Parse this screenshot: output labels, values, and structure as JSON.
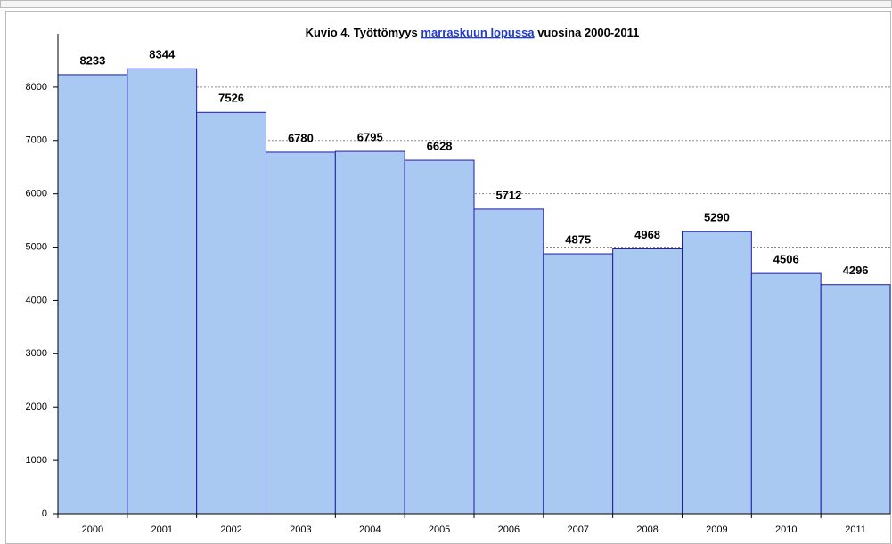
{
  "chart_data": {
    "type": "bar",
    "title": [
      "Kuvio 4. Työttömyys",
      "marraskuun lopussa",
      "vuosina  2000-2011"
    ],
    "categories": [
      "2000",
      "2001",
      "2002",
      "2003",
      "2004",
      "2005",
      "2006",
      "2007",
      "2008",
      "2009",
      "2010",
      "2011"
    ],
    "values": [
      8233,
      8344,
      7526,
      6780,
      6795,
      6628,
      5712,
      4875,
      4968,
      5290,
      4506,
      4296
    ],
    "color": "#a9c9f2",
    "edge_color": "#1c1ca8",
    "ylim": [
      0,
      9000
    ],
    "yticks": [
      0,
      1000,
      2000,
      3000,
      4000,
      5000,
      6000,
      7000,
      8000
    ],
    "grid": true
  }
}
